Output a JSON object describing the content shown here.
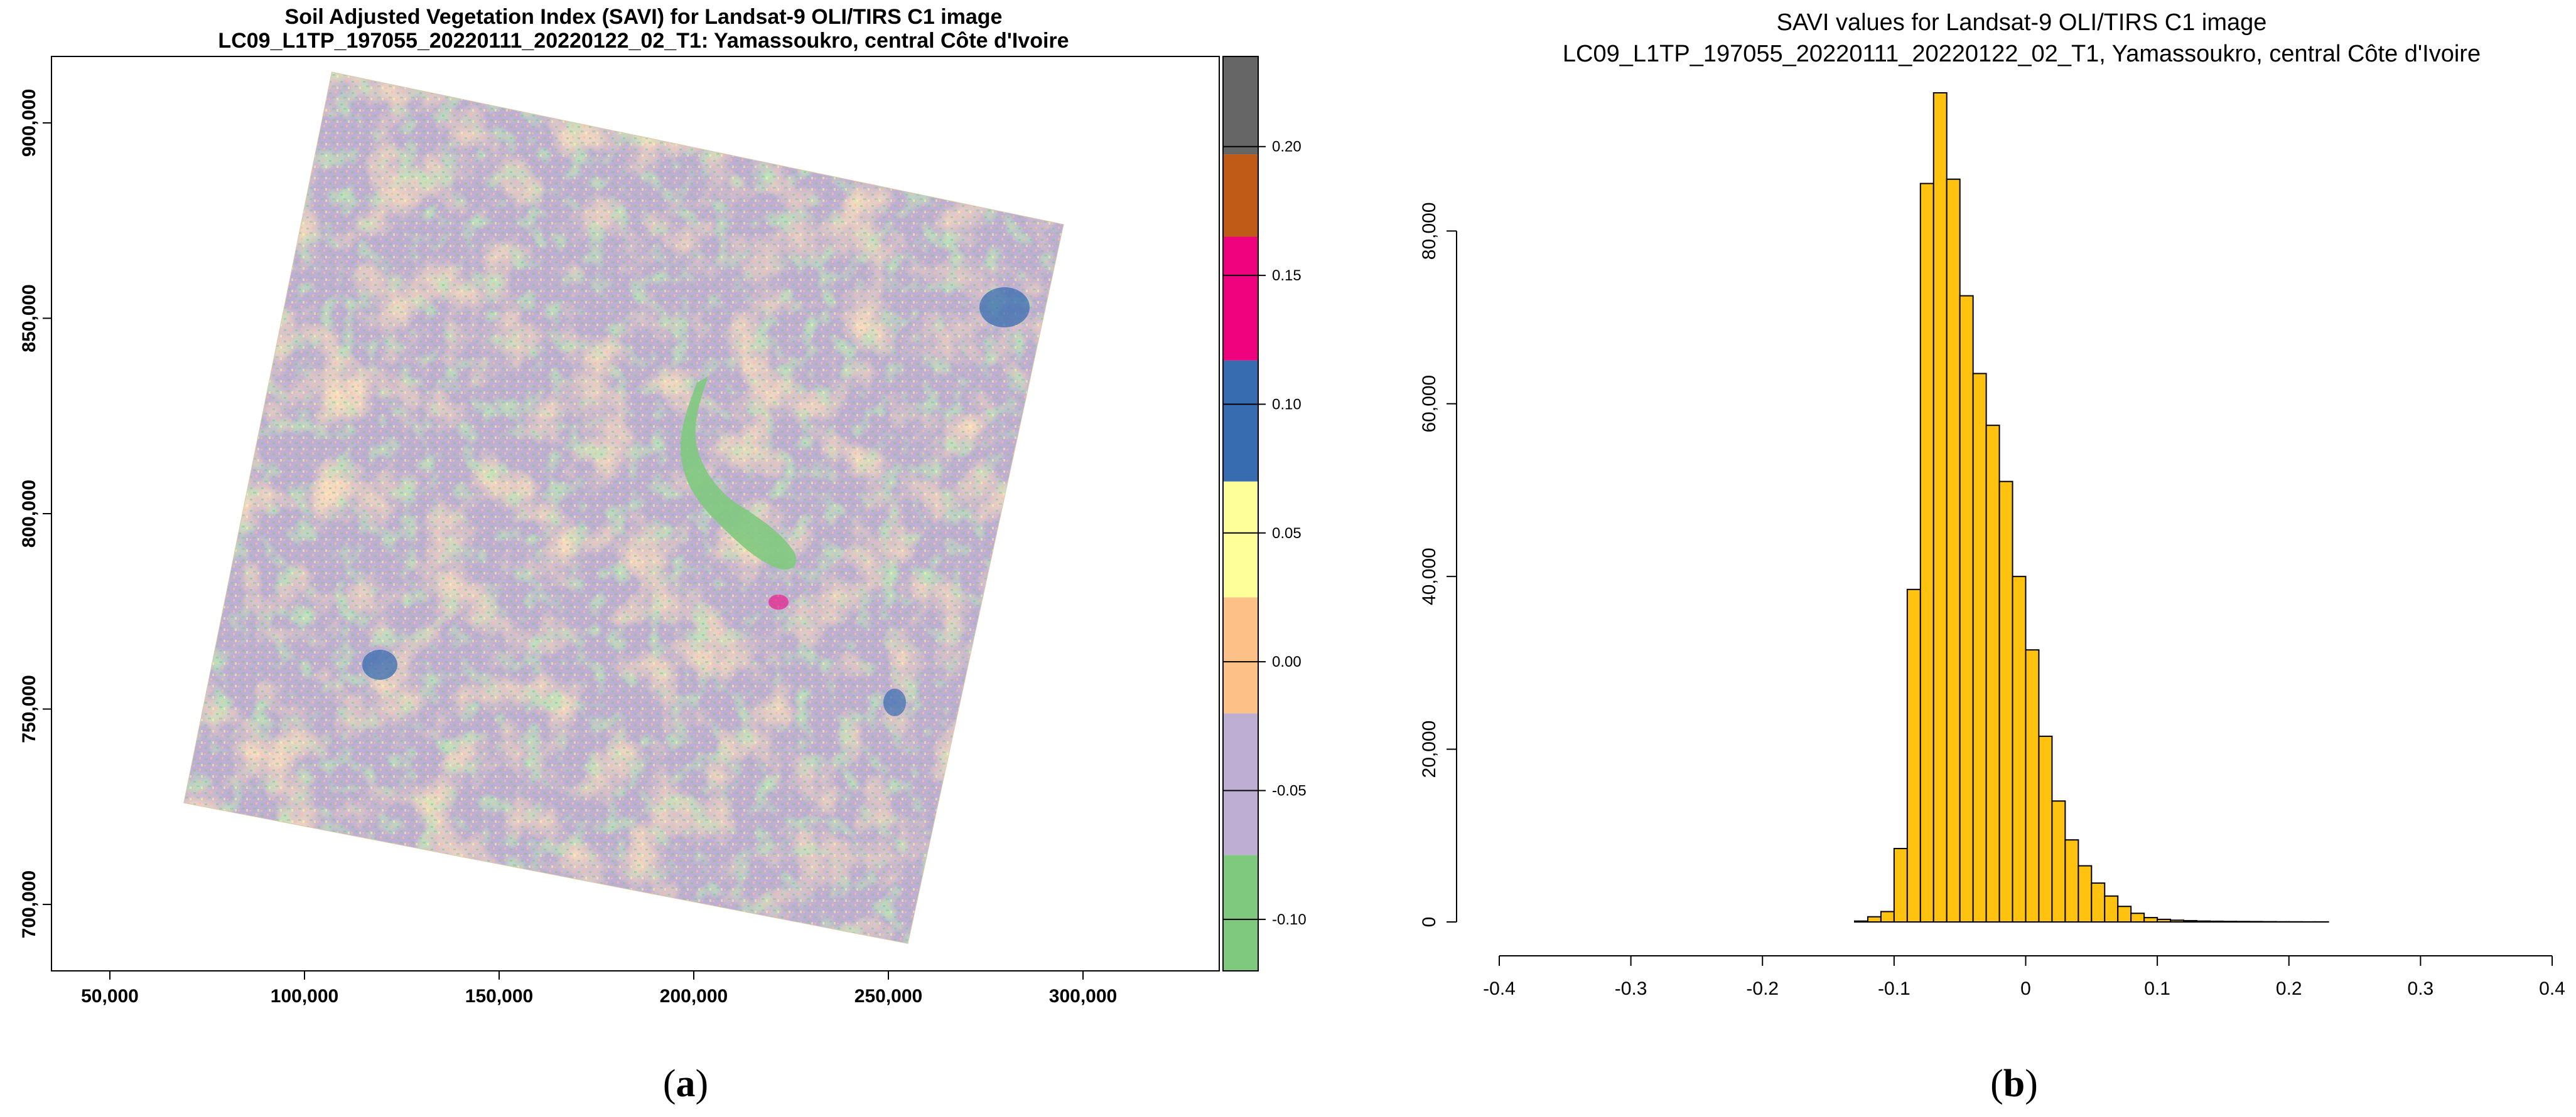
{
  "chart_data": [
    {
      "type": "heatmap",
      "panel": "a",
      "title": "Soil Adjusted Vegetation Index (SAVI) for Landsat-9 OLI/TIRS C1 image",
      "subtitle": "LC09_L1TP_197055_20220111_20220122_02_T1: Yamassoukro, central Côte d'Ivoire",
      "xlabel": "",
      "ylabel": "",
      "xlim": [
        35000,
        335000
      ],
      "ylim": [
        683000,
        917000
      ],
      "x_ticks": [
        50000,
        100000,
        150000,
        200000,
        250000,
        300000
      ],
      "x_tick_labels": [
        "50,000",
        "100,000",
        "150,000",
        "200,000",
        "250,000",
        "300,000"
      ],
      "y_ticks": [
        700000,
        750000,
        800000,
        850000,
        900000
      ],
      "y_tick_labels": [
        "700,000",
        "750,000",
        "800,000",
        "850,000",
        "900,000"
      ],
      "scene_corners": [
        [
          107000,
          913000
        ],
        [
          295000,
          874000
        ],
        [
          255000,
          690000
        ],
        [
          69000,
          726000
        ]
      ],
      "colorbar": {
        "range": [
          -0.12,
          0.235
        ],
        "ticks": [
          -0.1,
          -0.05,
          0.0,
          0.05,
          0.1,
          0.15,
          0.2
        ],
        "tick_labels": [
          "-0.10",
          "-0.05",
          "0.00",
          "0.05",
          "0.10",
          "0.15",
          "0.20"
        ],
        "classes": [
          {
            "from": -0.12,
            "to": -0.075,
            "color": "#7fc97f"
          },
          {
            "from": -0.075,
            "to": -0.02,
            "color": "#beaed4"
          },
          {
            "from": -0.02,
            "to": 0.025,
            "color": "#fdc086"
          },
          {
            "from": 0.025,
            "to": 0.07,
            "color": "#ffff99"
          },
          {
            "from": 0.07,
            "to": 0.117,
            "color": "#386cb0"
          },
          {
            "from": 0.117,
            "to": 0.165,
            "color": "#f0027f"
          },
          {
            "from": 0.165,
            "to": 0.197,
            "color": "#bf5b17"
          },
          {
            "from": 0.197,
            "to": 0.235,
            "color": "#666666"
          }
        ]
      }
    },
    {
      "type": "bar",
      "panel": "b",
      "title": "SAVI values for Landsat-9 OLI/TIRS C1 image",
      "subtitle": "LC09_L1TP_197055_20220111_20220122_02_T1, Yamassoukro, central Côte d'Ivoire",
      "xlabel": "",
      "ylabel": "",
      "bar_color": "#ffc20e",
      "bin_width": 0.01,
      "bin_start": -0.13,
      "values": [
        100,
        600,
        1200,
        8500,
        38500,
        85500,
        96000,
        86000,
        72500,
        63500,
        57500,
        51000,
        40000,
        31500,
        21500,
        14000,
        9500,
        6500,
        4500,
        3000,
        1800,
        1000,
        500,
        300,
        200,
        150,
        100,
        80,
        60,
        50,
        40,
        30,
        20,
        15,
        10,
        10
      ],
      "xlim": [
        -0.4,
        0.4
      ],
      "ylim": [
        0,
        96000
      ],
      "x_ticks": [
        -0.4,
        -0.3,
        -0.2,
        -0.1,
        0.0,
        0.1,
        0.2,
        0.3,
        0.4
      ],
      "x_tick_labels": [
        "-0.4",
        "-0.3",
        "-0.2",
        "-0.1",
        "0",
        "0.1",
        "0.2",
        "0.3",
        "0.4"
      ],
      "y_ticks": [
        0,
        20000,
        40000,
        60000,
        80000
      ],
      "y_tick_labels": [
        "0",
        "20,000",
        "40,000",
        "60,000",
        "80,000"
      ]
    }
  ],
  "panel_labels": [
    "(a)",
    "(b)"
  ]
}
